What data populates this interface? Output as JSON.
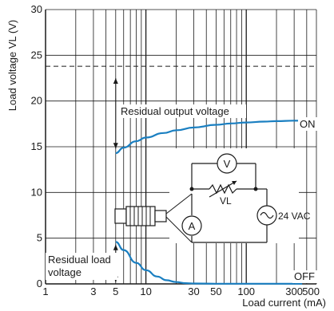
{
  "chart_data": {
    "type": "line",
    "xlabel": "Load current (mA)",
    "ylabel": "Load voltage VL (V)",
    "x_scale": "log",
    "xlim": [
      1,
      500
    ],
    "ylim": [
      0,
      30
    ],
    "x_ticks": [
      {
        "value": 1,
        "label": "1"
      },
      {
        "value": 3,
        "label": "3"
      },
      {
        "value": 5,
        "label": "5"
      },
      {
        "value": 10,
        "label": "10"
      },
      {
        "value": 30,
        "label": "30"
      },
      {
        "value": 50,
        "label": "50"
      },
      {
        "value": 100,
        "label": "100"
      },
      {
        "value": 300,
        "label": "300"
      },
      {
        "value": 500,
        "label": "500"
      }
    ],
    "y_ticks": [
      {
        "value": 0,
        "label": "0"
      },
      {
        "value": 5,
        "label": "5"
      },
      {
        "value": 10,
        "label": "10"
      },
      {
        "value": 15,
        "label": "15"
      },
      {
        "value": 20,
        "label": "20"
      },
      {
        "value": 25,
        "label": "25"
      },
      {
        "value": 30,
        "label": "30"
      }
    ],
    "grid": true,
    "reference_line": {
      "y": 23.8,
      "style": "dashed"
    },
    "series": [
      {
        "name": "ON",
        "color": "#1a7fc1",
        "x": [
          5,
          6,
          8,
          10,
          15,
          20,
          30,
          50,
          70,
          100,
          150,
          200,
          300
        ],
        "y": [
          14.3,
          14.9,
          15.6,
          16.0,
          16.5,
          16.8,
          17.1,
          17.4,
          17.55,
          17.65,
          17.75,
          17.8,
          17.85
        ]
      },
      {
        "name": "OFF",
        "color": "#1a7fc1",
        "x": [
          5,
          6,
          8,
          10,
          13,
          16,
          20,
          25,
          30,
          50,
          100,
          300
        ],
        "y": [
          4.6,
          3.7,
          2.3,
          1.5,
          0.8,
          0.4,
          0.2,
          0.08,
          0.04,
          0.02,
          0.02,
          0.02
        ]
      }
    ],
    "annotations": {
      "residual_output": "Residual output voltage",
      "residual_load_line1": "Residual load",
      "residual_load_line2": "voltage",
      "on_label": "ON",
      "off_label": "OFF"
    },
    "circuit": {
      "voltmeter": "V",
      "ammeter": "A",
      "load_label": "VL",
      "source_label": "24 VAC"
    }
  }
}
